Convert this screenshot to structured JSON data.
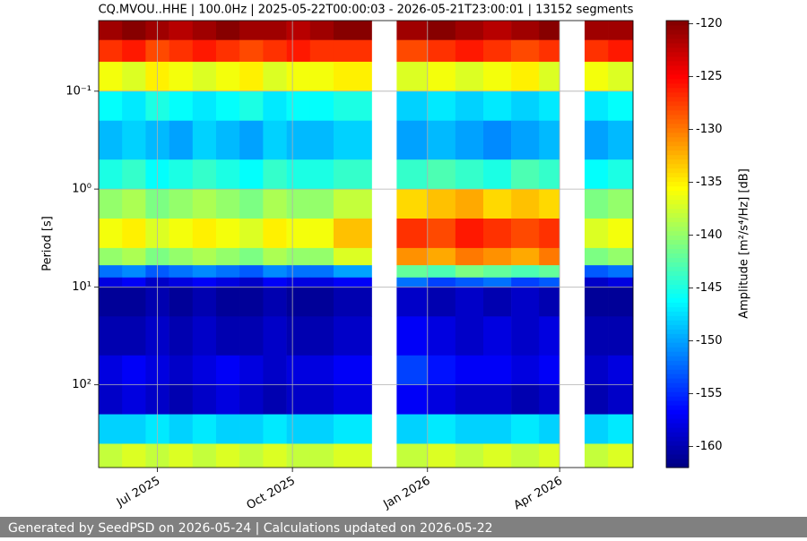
{
  "chart_data": {
    "type": "heatmap",
    "title": "CQ.MVOU..HHE | 100.0Hz | 2025-05-22T00:00:03 - 2026-05-21T23:00:01 | 13152 segments",
    "ylabel": "Period [s]",
    "colorbar_label": "Amplitude [m²/s⁴/Hz] [dB]",
    "footer": "Generated by SeedPSD on 2026-05-24 | Calculations updated on 2026-05-22",
    "colormap": "jet",
    "y_log": true,
    "y_inverted": true,
    "grid": true,
    "xlim": [
      "2025-05-22",
      "2026-05-21"
    ],
    "xticks": [
      {
        "value": "2025-07-01",
        "label": "Jul 2025"
      },
      {
        "value": "2025-10-01",
        "label": "Oct 2025"
      },
      {
        "value": "2026-01-01",
        "label": "Jan 2026"
      },
      {
        "value": "2026-04-01",
        "label": "Apr 2026"
      }
    ],
    "ylim": [
      0.019,
      700
    ],
    "yticks": [
      {
        "value": 0.1,
        "label": "10⁻¹"
      },
      {
        "value": 1,
        "label": "10⁰"
      },
      {
        "value": 10,
        "label": "10¹"
      },
      {
        "value": 100,
        "label": "10²"
      }
    ],
    "clim": [
      -162,
      -119.7
    ],
    "cticks": [
      -120,
      -125,
      -130,
      -135,
      -140,
      -145,
      -150,
      -155,
      -160
    ],
    "x_edges": [
      "2025-05-22",
      "2025-06-07",
      "2025-06-23",
      "2025-07-09",
      "2025-07-25",
      "2025-08-10",
      "2025-08-26",
      "2025-09-11",
      "2025-09-27",
      "2025-10-13",
      "2025-10-29",
      "2025-11-24",
      "2025-12-11",
      "2026-01-01",
      "2026-01-20",
      "2026-02-08",
      "2026-02-27",
      "2026-03-18",
      "2026-04-01",
      "2026-04-18",
      "2026-05-04",
      "2026-05-21"
    ],
    "y_edges": [
      0.019,
      0.03,
      0.05,
      0.1,
      0.2,
      0.5,
      1,
      2,
      4,
      6,
      8,
      10,
      20,
      50,
      100,
      200,
      400,
      700
    ],
    "z": [
      [
        -121,
        -120,
        -121,
        -122,
        -121,
        -120,
        -121,
        -121,
        -122,
        -121,
        -120,
        null,
        -121,
        -120,
        -121,
        -122,
        -121,
        -120,
        null,
        -121,
        -121
      ],
      [
        -127,
        -126,
        -128,
        -127,
        -126,
        -127,
        -128,
        -127,
        -126,
        -127,
        -127,
        null,
        -128,
        -127,
        -126,
        -127,
        -128,
        -127,
        null,
        -127,
        -126
      ],
      [
        -136,
        -137,
        -135,
        -136,
        -137,
        -136,
        -135,
        -137,
        -136,
        -136,
        -135,
        null,
        -137,
        -136,
        -137,
        -136,
        -135,
        -137,
        null,
        -136,
        -137
      ],
      [
        -146,
        -147,
        -145,
        -146,
        -147,
        -146,
        -145,
        -147,
        -146,
        -146,
        -145,
        null,
        -148,
        -147,
        -148,
        -147,
        -148,
        -147,
        null,
        -147,
        -146
      ],
      [
        -149,
        -148,
        -149,
        -150,
        -148,
        -149,
        -150,
        -148,
        -149,
        -149,
        -148,
        null,
        -150,
        -149,
        -150,
        -151,
        -150,
        -149,
        null,
        -150,
        -149
      ],
      [
        -145,
        -144,
        -146,
        -145,
        -144,
        -145,
        -146,
        -144,
        -145,
        -145,
        -144,
        null,
        -144,
        -143,
        -144,
        -145,
        -143,
        -144,
        null,
        -146,
        -145
      ],
      [
        -140,
        -139,
        -141,
        -140,
        -139,
        -140,
        -141,
        -139,
        -140,
        -140,
        -138,
        null,
        -134,
        -133,
        -132,
        -134,
        -133,
        -134,
        null,
        -141,
        -140
      ],
      [
        -136,
        -135,
        -137,
        -136,
        -135,
        -136,
        -137,
        -135,
        -136,
        -136,
        -133,
        null,
        -127,
        -128,
        -126,
        -127,
        -128,
        -127,
        null,
        -137,
        -136
      ],
      [
        -140,
        -139,
        -141,
        -140,
        -139,
        -140,
        -141,
        -139,
        -140,
        -140,
        -137,
        null,
        -131,
        -132,
        -130,
        -131,
        -132,
        -130,
        null,
        -141,
        -140
      ],
      [
        -152,
        -151,
        -153,
        -152,
        -151,
        -152,
        -153,
        -151,
        -152,
        -152,
        -150,
        null,
        -142,
        -143,
        -141,
        -142,
        -143,
        -142,
        null,
        -153,
        -152
      ],
      [
        -158,
        -157,
        -159,
        -158,
        -157,
        -158,
        -159,
        -157,
        -158,
        -158,
        -157,
        null,
        -152,
        -154,
        -153,
        -152,
        -154,
        -153,
        null,
        -159,
        -158
      ],
      [
        -161,
        -161,
        -160,
        -161,
        -160,
        -161,
        -161,
        -160,
        -161,
        -161,
        -160,
        null,
        -159,
        -160,
        -159,
        -160,
        -159,
        -160,
        null,
        -161,
        -161
      ],
      [
        -160,
        -160,
        -159,
        -160,
        -159,
        -160,
        -160,
        -159,
        -160,
        -160,
        -159,
        null,
        -157,
        -158,
        -159,
        -158,
        -159,
        -158,
        null,
        -160,
        -160
      ],
      [
        -158,
        -157,
        -158,
        -159,
        -158,
        -157,
        -158,
        -159,
        -158,
        -158,
        -157,
        null,
        -154,
        -156,
        -157,
        -157,
        -158,
        -157,
        null,
        -159,
        -158
      ],
      [
        -159,
        -158,
        -159,
        -160,
        -159,
        -158,
        -159,
        -160,
        -159,
        -159,
        -158,
        null,
        -157,
        -158,
        -159,
        -159,
        -160,
        -159,
        null,
        -160,
        -159
      ],
      [
        -148,
        -148,
        -147,
        -148,
        -147,
        -148,
        -148,
        -147,
        -148,
        -148,
        -147,
        null,
        -148,
        -147,
        -148,
        -148,
        -147,
        -148,
        null,
        -148,
        -147
      ],
      [
        -138,
        -137,
        -138,
        -137,
        -138,
        -137,
        -138,
        -137,
        -138,
        -138,
        -137,
        null,
        -138,
        -137,
        -138,
        -137,
        -138,
        -137,
        null,
        -138,
        -137
      ]
    ]
  }
}
